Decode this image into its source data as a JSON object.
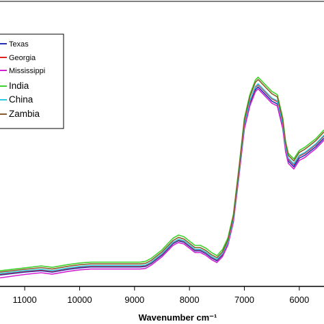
{
  "chart_data": {
    "type": "line",
    "xlabel": "Wavenumber  cm⁻¹",
    "x_ticks": [
      11000,
      10000,
      9000,
      8000,
      7000,
      6000
    ],
    "xlim": [
      11450,
      5550
    ],
    "ylim": [
      0,
      1
    ],
    "x_reversed": true,
    "legend_position": "top-left",
    "series": [
      {
        "name": "Texas",
        "color": "#1f2fb4",
        "x": [
          11450,
          11000,
          10700,
          10500,
          10200,
          10000,
          9800,
          9500,
          9200,
          8900,
          8800,
          8700,
          8600,
          8500,
          8400,
          8300,
          8200,
          8100,
          8000,
          7900,
          7800,
          7700,
          7600,
          7500,
          7400,
          7300,
          7200,
          7100,
          7000,
          6900,
          6800,
          6750,
          6700,
          6600,
          6500,
          6400,
          6300,
          6250,
          6200,
          6100,
          6000,
          5900,
          5800,
          5700,
          5550
        ],
        "y": [
          0.04,
          0.05,
          0.055,
          0.05,
          0.06,
          0.065,
          0.068,
          0.068,
          0.068,
          0.068,
          0.07,
          0.08,
          0.095,
          0.11,
          0.13,
          0.15,
          0.16,
          0.155,
          0.14,
          0.125,
          0.125,
          0.115,
          0.1,
          0.09,
          0.11,
          0.15,
          0.23,
          0.39,
          0.56,
          0.64,
          0.69,
          0.7,
          0.69,
          0.67,
          0.65,
          0.64,
          0.56,
          0.48,
          0.44,
          0.42,
          0.45,
          0.46,
          0.475,
          0.49,
          0.52
        ]
      },
      {
        "name": "Georgia",
        "color": "#e02020",
        "x": [
          11450,
          11000,
          10700,
          10500,
          10200,
          10000,
          9800,
          9500,
          9200,
          8900,
          8800,
          8700,
          8600,
          8500,
          8400,
          8300,
          8200,
          8100,
          8000,
          7900,
          7800,
          7700,
          7600,
          7500,
          7400,
          7300,
          7200,
          7100,
          7000,
          6900,
          6800,
          6750,
          6700,
          6600,
          6500,
          6400,
          6300,
          6250,
          6200,
          6100,
          6000,
          5900,
          5800,
          5700,
          5550
        ],
        "y": [
          0.043,
          0.053,
          0.058,
          0.053,
          0.063,
          0.068,
          0.071,
          0.071,
          0.071,
          0.071,
          0.073,
          0.083,
          0.098,
          0.113,
          0.133,
          0.153,
          0.163,
          0.158,
          0.143,
          0.128,
          0.128,
          0.118,
          0.103,
          0.093,
          0.113,
          0.153,
          0.235,
          0.395,
          0.567,
          0.648,
          0.698,
          0.708,
          0.698,
          0.678,
          0.658,
          0.648,
          0.568,
          0.487,
          0.447,
          0.427,
          0.457,
          0.467,
          0.482,
          0.497,
          0.528
        ]
      },
      {
        "name": "Mississippi",
        "color": "#d21fd2",
        "x": [
          11450,
          11000,
          10700,
          10500,
          10200,
          10000,
          9800,
          9500,
          9200,
          8900,
          8800,
          8700,
          8600,
          8500,
          8400,
          8300,
          8200,
          8100,
          8000,
          7900,
          7800,
          7700,
          7600,
          7500,
          7400,
          7300,
          7200,
          7100,
          7000,
          6900,
          6800,
          6750,
          6700,
          6600,
          6500,
          6400,
          6300,
          6250,
          6200,
          6100,
          6000,
          5900,
          5800,
          5700,
          5550
        ],
        "y": [
          0.03,
          0.042,
          0.048,
          0.043,
          0.053,
          0.058,
          0.061,
          0.061,
          0.061,
          0.061,
          0.063,
          0.074,
          0.089,
          0.104,
          0.124,
          0.144,
          0.154,
          0.149,
          0.134,
          0.119,
          0.119,
          0.109,
          0.094,
          0.084,
          0.104,
          0.145,
          0.225,
          0.385,
          0.553,
          0.633,
          0.683,
          0.693,
          0.683,
          0.663,
          0.643,
          0.633,
          0.553,
          0.473,
          0.432,
          0.412,
          0.442,
          0.452,
          0.468,
          0.483,
          0.513
        ]
      },
      {
        "name": "India",
        "color": "#3cd22a",
        "x": [
          11450,
          11000,
          10700,
          10500,
          10200,
          10000,
          9800,
          9500,
          9200,
          8900,
          8800,
          8700,
          8600,
          8500,
          8400,
          8300,
          8200,
          8100,
          8000,
          7900,
          7800,
          7700,
          7600,
          7500,
          7400,
          7300,
          7200,
          7100,
          7000,
          6900,
          6800,
          6750,
          6700,
          6600,
          6500,
          6400,
          6300,
          6250,
          6200,
          6100,
          6000,
          5900,
          5800,
          5700,
          5550
        ],
        "y": [
          0.055,
          0.065,
          0.072,
          0.067,
          0.077,
          0.082,
          0.085,
          0.085,
          0.085,
          0.085,
          0.088,
          0.098,
          0.113,
          0.128,
          0.149,
          0.169,
          0.18,
          0.174,
          0.159,
          0.144,
          0.144,
          0.134,
          0.119,
          0.108,
          0.129,
          0.17,
          0.253,
          0.416,
          0.59,
          0.673,
          0.724,
          0.734,
          0.724,
          0.704,
          0.684,
          0.673,
          0.591,
          0.509,
          0.467,
          0.447,
          0.477,
          0.488,
          0.503,
          0.518,
          0.549
        ]
      },
      {
        "name": "China",
        "color": "#28c8e6",
        "x": [
          11450,
          11000,
          10700,
          10500,
          10200,
          10000,
          9800,
          9500,
          9200,
          8900,
          8800,
          8700,
          8600,
          8500,
          8400,
          8300,
          8200,
          8100,
          8000,
          7900,
          7800,
          7700,
          7600,
          7500,
          7400,
          7300,
          7200,
          7100,
          7000,
          6900,
          6800,
          6750,
          6700,
          6600,
          6500,
          6400,
          6300,
          6250,
          6200,
          6100,
          6000,
          5900,
          5800,
          5700,
          5550
        ],
        "y": [
          0.045,
          0.055,
          0.06,
          0.055,
          0.065,
          0.07,
          0.073,
          0.073,
          0.073,
          0.073,
          0.075,
          0.085,
          0.1,
          0.115,
          0.135,
          0.155,
          0.165,
          0.16,
          0.145,
          0.13,
          0.13,
          0.12,
          0.105,
          0.095,
          0.115,
          0.155,
          0.237,
          0.398,
          0.57,
          0.651,
          0.701,
          0.711,
          0.701,
          0.681,
          0.661,
          0.651,
          0.571,
          0.49,
          0.45,
          0.43,
          0.46,
          0.47,
          0.485,
          0.5,
          0.531
        ]
      },
      {
        "name": "Zambia",
        "color": "#8b5a2b",
        "x": [
          11450,
          11000,
          10700,
          10500,
          10200,
          10000,
          9800,
          9500,
          9200,
          8900,
          8800,
          8700,
          8600,
          8500,
          8400,
          8300,
          8200,
          8100,
          8000,
          7900,
          7800,
          7700,
          7600,
          7500,
          7400,
          7300,
          7200,
          7100,
          7000,
          6900,
          6800,
          6750,
          6700,
          6600,
          6500,
          6400,
          6300,
          6250,
          6200,
          6100,
          6000,
          5900,
          5800,
          5700,
          5550
        ],
        "y": [
          0.05,
          0.06,
          0.066,
          0.061,
          0.071,
          0.076,
          0.079,
          0.079,
          0.079,
          0.079,
          0.081,
          0.091,
          0.106,
          0.121,
          0.141,
          0.161,
          0.172,
          0.166,
          0.151,
          0.136,
          0.136,
          0.126,
          0.111,
          0.101,
          0.121,
          0.162,
          0.245,
          0.408,
          0.582,
          0.665,
          0.716,
          0.726,
          0.716,
          0.696,
          0.676,
          0.665,
          0.583,
          0.502,
          0.46,
          0.44,
          0.47,
          0.481,
          0.496,
          0.511,
          0.542
        ]
      }
    ]
  }
}
